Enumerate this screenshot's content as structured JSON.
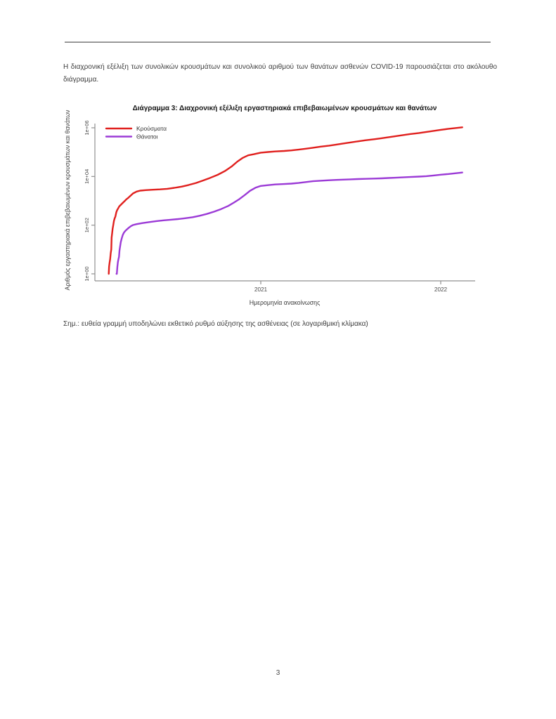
{
  "document": {
    "intro": "Η διαχρονική εξέλιξη των συνολικών κρουσμάτων και συνολικού αριθμού των θανάτων ασθενών COVID-19 παρουσιάζεται στο ακόλουθο διάγραμμα.",
    "note": "Σημ.: ευθεία γραμμή υποδηλώνει εκθετικό ρυθμό αύξησης της ασθένειας (σε λογαριθμική κλίμακα)",
    "page_number": "3"
  },
  "chart_data": {
    "type": "line",
    "title": "Διάγραμμα 3: Διαχρονική εξέλιξη εργαστηριακά επιβεβαιωμένων κρουσμάτων και θανάτων",
    "xlabel": "Ημερομηνία ανακοίνωσης",
    "ylabel": "Αριθμός εργαστηριακά επιβεβαιωμένων κρουσμάτων και θανάτων",
    "x_axis": {
      "label": "Ημερομηνία ανακοίνωσης",
      "ticks": [
        {
          "label": "2021",
          "value": 2021
        },
        {
          "label": "2022",
          "value": 2022
        }
      ],
      "range_decimal_years": [
        2020.12,
        2022.19
      ]
    },
    "y_axis": {
      "label": "Αριθμός εργαστηριακά επιβεβαιωμένων κρουσμάτων και θανάτων",
      "scale": "log10",
      "ticks": [
        {
          "label": "1e+00",
          "value": 1
        },
        {
          "label": "1e+02",
          "value": 100
        },
        {
          "label": "1e+04",
          "value": 10000
        },
        {
          "label": "1e+06",
          "value": 1000000
        }
      ]
    },
    "grid": false,
    "legend_position": "top-left",
    "series": [
      {
        "name": "Κρούσματα",
        "color": "#e0201e",
        "points": [
          [
            2020.155,
            1
          ],
          [
            2020.157,
            2
          ],
          [
            2020.16,
            3
          ],
          [
            2020.163,
            4
          ],
          [
            2020.166,
            7
          ],
          [
            2020.169,
            10
          ],
          [
            2020.171,
            31
          ],
          [
            2020.174,
            46
          ],
          [
            2020.177,
            73
          ],
          [
            2020.18,
            99
          ],
          [
            2020.184,
            150
          ],
          [
            2020.188,
            190
          ],
          [
            2020.192,
            228
          ],
          [
            2020.197,
            331
          ],
          [
            2020.202,
            418
          ],
          [
            2020.208,
            495
          ],
          [
            2020.214,
            600
          ],
          [
            2020.223,
            695
          ],
          [
            2020.233,
            821
          ],
          [
            2020.243,
            966
          ],
          [
            2020.253,
            1156
          ],
          [
            2020.263,
            1314
          ],
          [
            2020.276,
            1613
          ],
          [
            2020.29,
            2011
          ],
          [
            2020.31,
            2401
          ],
          [
            2020.33,
            2620
          ],
          [
            2020.36,
            2744
          ],
          [
            2020.4,
            2853
          ],
          [
            2020.44,
            2952
          ],
          [
            2020.48,
            3121
          ],
          [
            2020.52,
            3409
          ],
          [
            2020.56,
            3826
          ],
          [
            2020.6,
            4477
          ],
          [
            2020.64,
            5421
          ],
          [
            2020.68,
            6858
          ],
          [
            2020.72,
            8819
          ],
          [
            2020.76,
            11663
          ],
          [
            2020.8,
            16627
          ],
          [
            2020.84,
            26469
          ],
          [
            2020.87,
            40929
          ],
          [
            2020.9,
            58187
          ],
          [
            2020.93,
            74205
          ],
          [
            2020.96,
            82034
          ],
          [
            2021.0,
            95000
          ],
          [
            2021.04,
            101000
          ],
          [
            2021.08,
            107000
          ],
          [
            2021.13,
            112000
          ],
          [
            2021.17,
            118000
          ],
          [
            2021.21,
            127000
          ],
          [
            2021.25,
            138000
          ],
          [
            2021.29,
            152000
          ],
          [
            2021.33,
            167000
          ],
          [
            2021.38,
            185000
          ],
          [
            2021.42,
            205000
          ],
          [
            2021.46,
            227000
          ],
          [
            2021.5,
            251000
          ],
          [
            2021.54,
            277000
          ],
          [
            2021.58,
            306000
          ],
          [
            2021.63,
            338000
          ],
          [
            2021.67,
            373000
          ],
          [
            2021.71,
            412000
          ],
          [
            2021.75,
            455000
          ],
          [
            2021.79,
            502000
          ],
          [
            2021.83,
            554000
          ],
          [
            2021.88,
            612000
          ],
          [
            2021.92,
            676000
          ],
          [
            2021.96,
            746000
          ],
          [
            2022.0,
            824000
          ],
          [
            2022.04,
            900000
          ],
          [
            2022.08,
            975000
          ],
          [
            2022.12,
            1050000
          ]
        ]
      },
      {
        "name": "Θάνατοι",
        "color": "#9b3ad6",
        "points": [
          [
            2020.198,
            1
          ],
          [
            2020.2,
            1
          ],
          [
            2020.203,
            2
          ],
          [
            2020.206,
            3
          ],
          [
            2020.209,
            4
          ],
          [
            2020.212,
            5
          ],
          [
            2020.215,
            9
          ],
          [
            2020.218,
            13
          ],
          [
            2020.222,
            20
          ],
          [
            2020.227,
            28
          ],
          [
            2020.233,
            39
          ],
          [
            2020.24,
            50
          ],
          [
            2020.248,
            59
          ],
          [
            2020.257,
            68
          ],
          [
            2020.267,
            79
          ],
          [
            2020.279,
            92
          ],
          [
            2020.29,
            101
          ],
          [
            2020.31,
            110
          ],
          [
            2020.34,
            121
          ],
          [
            2020.38,
            134
          ],
          [
            2020.42,
            147
          ],
          [
            2020.46,
            158
          ],
          [
            2020.5,
            167
          ],
          [
            2020.54,
            178
          ],
          [
            2020.58,
            192
          ],
          [
            2020.62,
            212
          ],
          [
            2020.66,
            243
          ],
          [
            2020.7,
            289
          ],
          [
            2020.74,
            357
          ],
          [
            2020.78,
            459
          ],
          [
            2020.82,
            620
          ],
          [
            2020.85,
            842
          ],
          [
            2020.88,
            1165
          ],
          [
            2020.91,
            1714
          ],
          [
            2020.94,
            2570
          ],
          [
            2020.97,
            3450
          ],
          [
            2021.0,
            4100
          ],
          [
            2021.04,
            4400
          ],
          [
            2021.08,
            4700
          ],
          [
            2021.13,
            4900
          ],
          [
            2021.17,
            5100
          ],
          [
            2021.21,
            5400
          ],
          [
            2021.25,
            5900
          ],
          [
            2021.29,
            6400
          ],
          [
            2021.33,
            6700
          ],
          [
            2021.38,
            7000
          ],
          [
            2021.42,
            7250
          ],
          [
            2021.46,
            7450
          ],
          [
            2021.5,
            7650
          ],
          [
            2021.54,
            7830
          ],
          [
            2021.58,
            8000
          ],
          [
            2021.63,
            8200
          ],
          [
            2021.67,
            8400
          ],
          [
            2021.71,
            8650
          ],
          [
            2021.75,
            8900
          ],
          [
            2021.79,
            9200
          ],
          [
            2021.83,
            9500
          ],
          [
            2021.88,
            9900
          ],
          [
            2021.92,
            10300
          ],
          [
            2021.96,
            11000
          ],
          [
            2022.0,
            11800
          ],
          [
            2022.04,
            12600
          ],
          [
            2022.08,
            13500
          ],
          [
            2022.12,
            14500
          ]
        ]
      }
    ]
  }
}
